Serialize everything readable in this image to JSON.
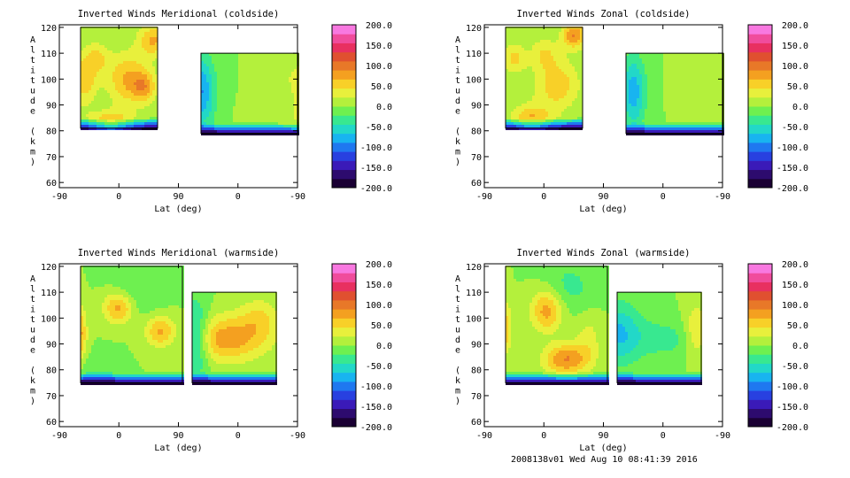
{
  "footer": "2008138v01 Wed Aug 10 08:41:39 2016",
  "colorbar": {
    "ticks": [
      "200.0",
      "150.0",
      "100.0",
      "50.0",
      "0.0",
      "-50.0",
      "-100.0",
      "-150.0",
      "-200.0"
    ],
    "colors": [
      "#1a0033",
      "#2d0b6e",
      "#3a1ab8",
      "#2840e0",
      "#1f78f0",
      "#18b4f0",
      "#22d8c8",
      "#38e890",
      "#6ef050",
      "#b4f03c",
      "#e8f03c",
      "#f8d028",
      "#f4a020",
      "#e87828",
      "#e05030",
      "#e83060",
      "#f04c9c",
      "#f878e0"
    ]
  },
  "chart_data": [
    {
      "type": "heatmap",
      "title": "Inverted Winds Meridional (coldside)",
      "xlabel": "Lat (deg)",
      "ylabel": "Altitude (km)",
      "xticks": [
        "-90",
        "0",
        "90",
        "0",
        "-90"
      ],
      "yticks": [
        "60",
        "70",
        "80",
        "90",
        "100",
        "110",
        "120"
      ],
      "ylim": [
        58,
        121
      ],
      "segments": [
        {
          "x": [
            -60,
            30
          ],
          "alt": [
            81,
            120
          ],
          "blobs": [
            [
              -5,
              100,
              70,
              24,
              10
            ],
            [
              -25,
              82,
              85,
              26,
              5
            ],
            [
              25,
              115,
              70,
              18,
              6
            ],
            [
              15,
              97,
              60,
              14,
              6
            ],
            [
              -55,
              100,
              60,
              14,
              10
            ],
            [
              -40,
              108,
              45,
              14,
              6
            ]
          ]
        },
        {
          "x": [
            95,
            25
          ],
          "alt": [
            79,
            110
          ],
          "blobs": [
            [
              -25,
              85,
              110,
              40,
              7
            ],
            [
              -10,
              92,
              60,
              20,
              6
            ],
            [
              95,
              95,
              -90,
              10,
              14
            ],
            [
              20,
              100,
              30,
              20,
              10
            ]
          ]
        }
      ]
    },
    {
      "type": "heatmap",
      "title": "Inverted Winds Zonal (coldside)",
      "xlabel": "Lat (deg)",
      "ylabel": "Altitude (km)",
      "xticks": [
        "-90",
        "0",
        "90",
        "0",
        "-90"
      ],
      "yticks": [
        "60",
        "70",
        "80",
        "90",
        "100",
        "110",
        "120"
      ],
      "ylim": [
        58,
        121
      ],
      "segments": [
        {
          "x": [
            -60,
            30
          ],
          "alt": [
            81,
            120
          ],
          "blobs": [
            [
              0,
              98,
              60,
              26,
              10
            ],
            [
              -30,
              84,
              70,
              24,
              6
            ],
            [
              20,
              117,
              90,
              14,
              5
            ],
            [
              -50,
              108,
              50,
              14,
              6
            ],
            [
              -15,
              110,
              40,
              16,
              6
            ]
          ]
        },
        {
          "x": [
            90,
            25
          ],
          "alt": [
            79,
            110
          ],
          "blobs": [
            [
              -20,
              86,
              80,
              30,
              6
            ],
            [
              10,
              100,
              25,
              25,
              10
            ],
            [
              85,
              95,
              -80,
              8,
              14
            ],
            [
              -40,
              105,
              20,
              20,
              10
            ]
          ]
        }
      ]
    },
    {
      "type": "heatmap",
      "title": "Inverted Winds Meridional (warmside)",
      "xlabel": "Lat (deg)",
      "ylabel": "Altitude (km)",
      "xticks": [
        "-90",
        "0",
        "90",
        "0",
        "-90"
      ],
      "yticks": [
        "60",
        "70",
        "80",
        "90",
        "100",
        "110",
        "120"
      ],
      "ylim": [
        58,
        121
      ],
      "segments": [
        {
          "x": [
            -70,
            90
          ],
          "alt": [
            75,
            120
          ],
          "blobs": [
            [
              -10,
              104,
              80,
              24,
              6
            ],
            [
              55,
              95,
              70,
              24,
              6
            ],
            [
              -70,
              94,
              70,
              10,
              10
            ],
            [
              20,
              110,
              -25,
              40,
              10
            ],
            [
              -45,
              80,
              -20,
              30,
              6
            ]
          ]
        },
        {
          "x": [
            -20,
            30
          ],
          "alt": [
            75,
            110
          ],
          "blobs": [
            [
              0,
              92,
              80,
              24,
              9
            ],
            [
              20,
              100,
              40,
              12,
              8
            ],
            [
              -18,
              92,
              -80,
              8,
              14
            ]
          ]
        }
      ]
    },
    {
      "type": "heatmap",
      "title": "Inverted Winds Zonal (warmside)",
      "xlabel": "Lat (deg)",
      "ylabel": "Altitude (km)",
      "xticks": [
        "-90",
        "0",
        "90",
        "0",
        "-90"
      ],
      "yticks": [
        "60",
        "70",
        "80",
        "90",
        "100",
        "110",
        "120"
      ],
      "ylim": [
        58,
        121
      ],
      "segments": [
        {
          "x": [
            -70,
            90
          ],
          "alt": [
            75,
            120
          ],
          "blobs": [
            [
              -5,
              103,
              80,
              25,
              8
            ],
            [
              25,
              84,
              90,
              35,
              6
            ],
            [
              -70,
              96,
              60,
              10,
              10
            ],
            [
              30,
              112,
              -30,
              40,
              10
            ],
            [
              60,
              92,
              30,
              20,
              10
            ]
          ]
        },
        {
          "x": [
            -5,
            30
          ],
          "alt": [
            75,
            110
          ],
          "blobs": [
            [
              -5,
              94,
              -70,
              10,
              12
            ],
            [
              15,
              92,
              -30,
              14,
              8
            ],
            [
              28,
              95,
              50,
              5,
              10
            ]
          ]
        }
      ]
    }
  ]
}
